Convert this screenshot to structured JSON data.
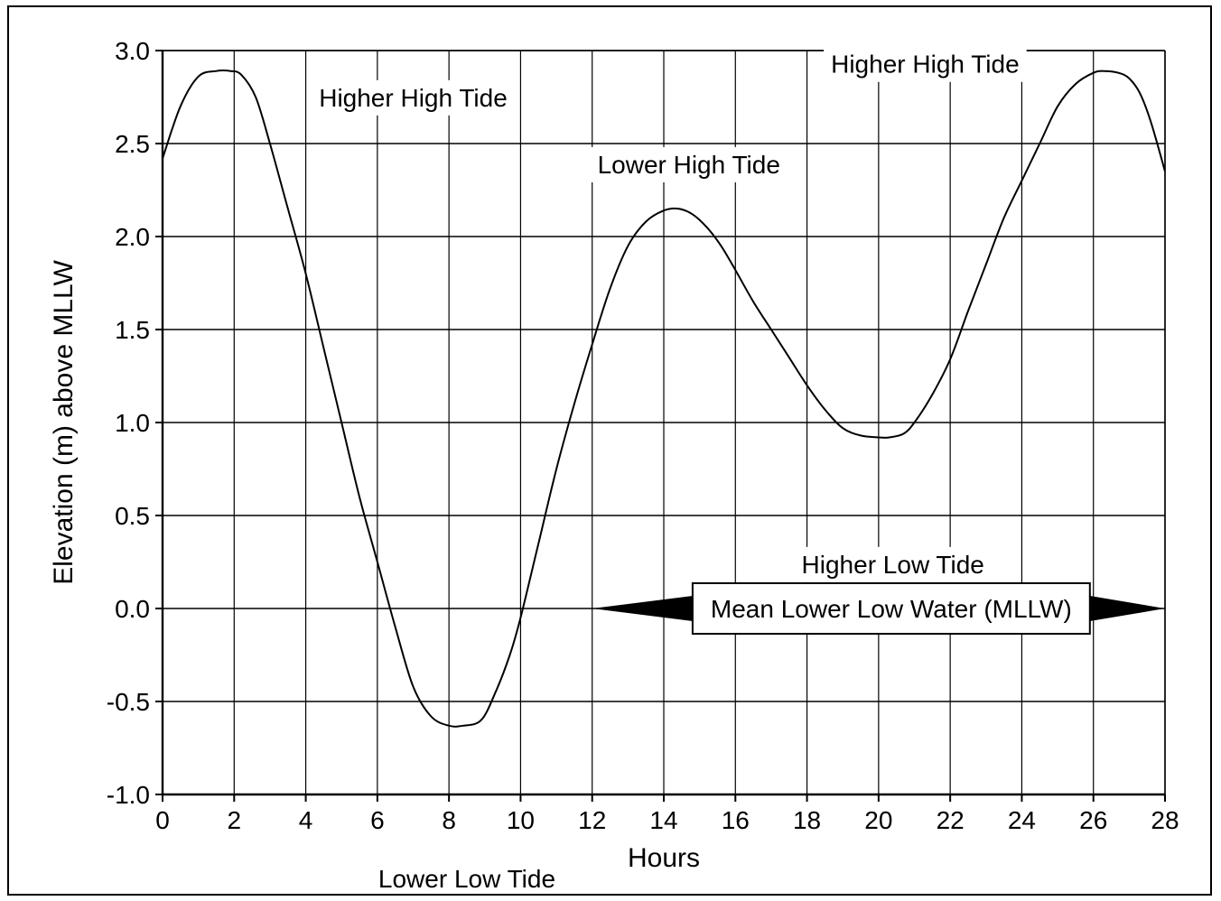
{
  "chart_data": {
    "type": "line",
    "title": "",
    "xlabel": "Hours",
    "ylabel": "Elevation (m) above MLLW",
    "xlim": [
      0,
      28
    ],
    "ylim": [
      -1.0,
      3.0
    ],
    "x_ticks": [
      0,
      2,
      4,
      6,
      8,
      10,
      12,
      14,
      16,
      18,
      20,
      22,
      24,
      26,
      28
    ],
    "x_tick_labels": [
      "0",
      "2",
      "4",
      "6",
      "8",
      "10",
      "12",
      "14",
      "16",
      "18",
      "20",
      "22",
      "24",
      "26",
      "28"
    ],
    "y_ticks": [
      -1.0,
      -0.5,
      0.0,
      0.5,
      1.0,
      1.5,
      2.0,
      2.5,
      3.0
    ],
    "y_tick_labels": [
      "-1.0",
      "-0.5",
      "0.0",
      "0.5",
      "1.0",
      "1.5",
      "2.0",
      "2.5",
      "3.0"
    ],
    "grid": true,
    "legend": "none",
    "line_color": "#000000",
    "series": [
      {
        "x": [
          0,
          0.5,
          1,
          1.5,
          1.9,
          2.2,
          2.6,
          3,
          3.5,
          4,
          4.5,
          5,
          5.5,
          6,
          6.5,
          7,
          7.5,
          8,
          8.4,
          8.9,
          9.3,
          9.7,
          10,
          10.5,
          11,
          11.5,
          12,
          12.5,
          13,
          13.5,
          14,
          14.4,
          14.8,
          15.2,
          15.6,
          16,
          16.5,
          17,
          17.5,
          18,
          18.5,
          19,
          19.5,
          20,
          20.3,
          20.7,
          21,
          21.5,
          22,
          22.5,
          23,
          23.5,
          24,
          24.5,
          25,
          25.5,
          26,
          26.3,
          26.7,
          27,
          27.3,
          27.6,
          28
        ],
        "y": [
          2.42,
          2.7,
          2.86,
          2.89,
          2.89,
          2.87,
          2.75,
          2.5,
          2.15,
          1.8,
          1.4,
          1.0,
          0.6,
          0.25,
          -0.1,
          -0.42,
          -0.58,
          -0.63,
          -0.63,
          -0.6,
          -0.45,
          -0.25,
          -0.05,
          0.35,
          0.75,
          1.1,
          1.42,
          1.72,
          1.95,
          2.08,
          2.14,
          2.15,
          2.12,
          2.05,
          1.95,
          1.82,
          1.65,
          1.5,
          1.35,
          1.2,
          1.07,
          0.97,
          0.93,
          0.92,
          0.92,
          0.94,
          1.0,
          1.15,
          1.34,
          1.6,
          1.85,
          2.1,
          2.3,
          2.5,
          2.7,
          2.82,
          2.88,
          2.89,
          2.88,
          2.85,
          2.77,
          2.62,
          2.35
        ]
      }
    ],
    "annotations": [
      {
        "text": "Higher High Tide",
        "x": 7.0,
        "y": 2.7,
        "anchor": "middle"
      },
      {
        "text": "Higher High Tide",
        "x": 21.3,
        "y": 2.88,
        "anchor": "middle"
      },
      {
        "text": "Lower High Tide",
        "x": 14.7,
        "y": 2.34,
        "anchor": "middle"
      },
      {
        "text": "Higher Low Tide",
        "x": 20.4,
        "y": 0.19,
        "anchor": "middle"
      },
      {
        "text": "Lower Low Tide",
        "x": 8.5,
        "y": -1.5,
        "anchor": "middle"
      }
    ],
    "reference_line": {
      "y": 0.0,
      "x_start": 12.0,
      "x_end": 28.0,
      "label": "Mean Lower Low Water (MLLW)"
    }
  }
}
